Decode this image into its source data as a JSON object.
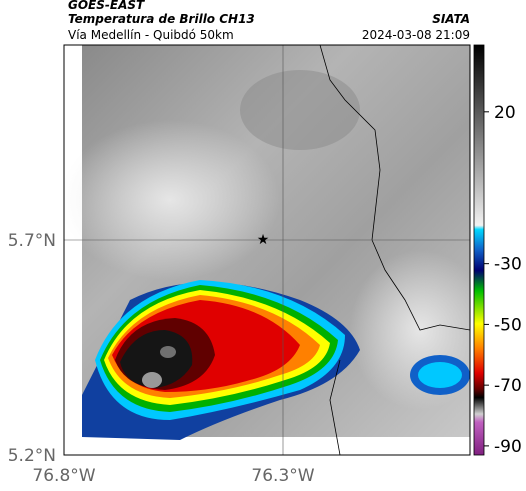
{
  "header": {
    "title": "GOES-EAST",
    "subtitle": "Temperatura de Brillo CH13",
    "region": "Vía Medellín - Quibdó 50km",
    "source": "SIATA",
    "datetime": "2024-03-08 21:09"
  },
  "map": {
    "lat_labels": [
      "5.7°N",
      "5.2°N"
    ],
    "lon_labels": [
      "76.8°W",
      "76.3°W"
    ]
  },
  "colorbar": {
    "range": [
      -93,
      42
    ],
    "ticks": [
      20,
      -30,
      -50,
      -70,
      -90
    ]
  }
}
